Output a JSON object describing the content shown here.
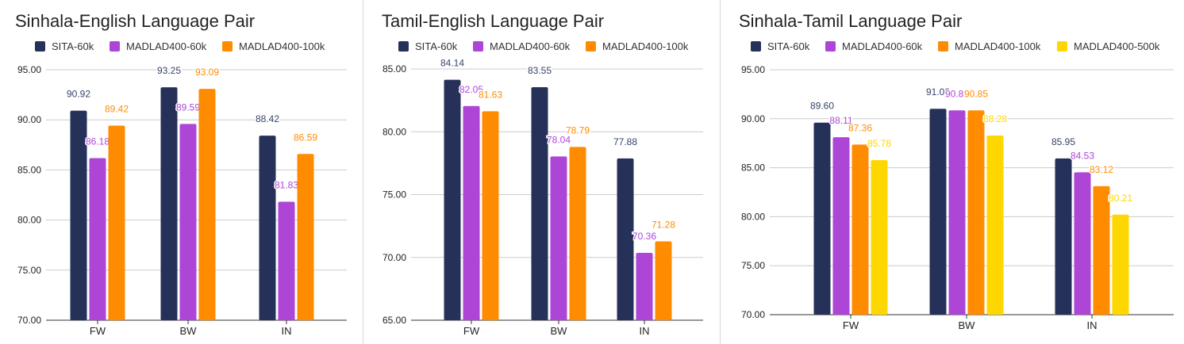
{
  "colors": {
    "SITA-60k": "#263159",
    "MADLAD400-60k": "#ad46d6",
    "MADLAD400-100k": "#ff8c00",
    "MADLAD400-500k": "#ffd700"
  },
  "chart_data": [
    {
      "type": "bar",
      "title": "Sinhala-English Language Pair",
      "categories": [
        "FW",
        "BW",
        "IN"
      ],
      "ylim": [
        70,
        95
      ],
      "yticks": [
        "70.00",
        "75.00",
        "80.00",
        "85.00",
        "90.00",
        "95.00"
      ],
      "grid": true,
      "legend_position": "top",
      "series": [
        {
          "name": "SITA-60k",
          "values": [
            90.92,
            93.25,
            88.42
          ],
          "labels": [
            "90.92",
            "93.25",
            "88.42"
          ]
        },
        {
          "name": "MADLAD400-60k",
          "values": [
            86.18,
            89.59,
            81.83
          ],
          "labels": [
            "86.18",
            "89.59",
            "81.83"
          ]
        },
        {
          "name": "MADLAD400-100k",
          "values": [
            89.42,
            93.09,
            86.59
          ],
          "labels": [
            "89.42",
            "93.09",
            "86.59"
          ]
        }
      ]
    },
    {
      "type": "bar",
      "title": "Tamil-English Language Pair",
      "categories": [
        "FW",
        "BW",
        "IN"
      ],
      "ylim": [
        65,
        85
      ],
      "yticks": [
        "65.00",
        "70.00",
        "75.00",
        "80.00",
        "85.00"
      ],
      "grid": true,
      "legend_position": "top",
      "series": [
        {
          "name": "SITA-60k",
          "values": [
            84.14,
            83.55,
            77.88
          ],
          "labels": [
            "84.14",
            "83.55",
            "77.88"
          ]
        },
        {
          "name": "MADLAD400-60k",
          "values": [
            82.05,
            78.04,
            70.36
          ],
          "labels": [
            "82.05",
            "78.04",
            "70.36"
          ]
        },
        {
          "name": "MADLAD400-100k",
          "values": [
            81.63,
            78.79,
            71.28
          ],
          "labels": [
            "81.63",
            "78.79",
            "71.28"
          ]
        }
      ]
    },
    {
      "type": "bar",
      "title": "Sinhala-Tamil Language Pair",
      "categories": [
        "FW",
        "BW",
        "IN"
      ],
      "ylim": [
        70,
        95
      ],
      "yticks": [
        "70.00",
        "75.00",
        "80.00",
        "85.00",
        "90.00",
        "95.00"
      ],
      "grid": true,
      "legend_position": "top",
      "series": [
        {
          "name": "SITA-60k",
          "values": [
            89.6,
            91.02,
            85.95
          ],
          "labels": [
            "89.60",
            "91.02",
            "85.95"
          ]
        },
        {
          "name": "MADLAD400-60k",
          "values": [
            88.11,
            90.85,
            84.53
          ],
          "labels": [
            "88.11",
            "90.85",
            "84.53"
          ]
        },
        {
          "name": "MADLAD400-100k",
          "values": [
            87.36,
            90.85,
            83.12
          ],
          "labels": [
            "87.36",
            "90.85",
            "83.12"
          ]
        },
        {
          "name": "MADLAD400-500k",
          "values": [
            85.78,
            88.28,
            80.21
          ],
          "labels": [
            "85.78",
            "88.28",
            "80.21"
          ]
        }
      ]
    }
  ]
}
